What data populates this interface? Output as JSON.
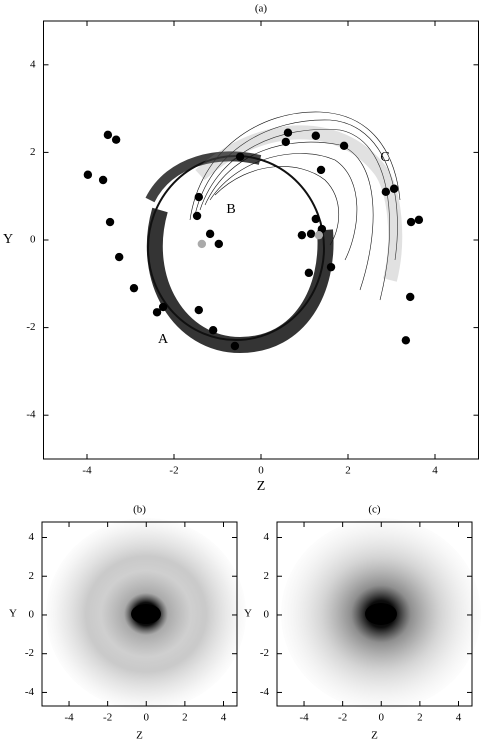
{
  "chart_data": [
    {
      "type": "scatter",
      "title": "(a)",
      "xlabel": "Z",
      "ylabel": "Y",
      "xlim": [
        -5,
        5
      ],
      "ylim": [
        -5,
        5
      ],
      "xticks": [
        -4,
        -2,
        0,
        2,
        4
      ],
      "yticks": [
        -4,
        -2,
        0,
        2,
        4
      ],
      "annotations": [
        "A",
        "B",
        "C"
      ],
      "series": [
        {
          "color": "#000000",
          "x": [
            -3.52,
            -3.33,
            -3.98,
            -3.63,
            -3.47,
            -3.26,
            -2.92,
            -2.39,
            -2.25,
            -1.43,
            -1.1,
            -0.6,
            -1.43,
            -1.47,
            -1.17,
            -0.97,
            -0.48,
            0.62,
            0.57,
            1.26,
            1.91,
            1.38,
            1.26,
            0.94,
            1.15,
            1.4,
            1.1,
            1.61,
            2.87,
            3.06,
            3.45,
            3.63,
            3.43,
            3.33
          ],
          "y": [
            2.4,
            2.29,
            1.49,
            1.37,
            0.41,
            -0.39,
            -1.1,
            -1.65,
            -1.53,
            -1.6,
            -2.06,
            -2.42,
            0.98,
            0.55,
            0.14,
            -0.09,
            1.9,
            2.45,
            2.24,
            2.38,
            2.15,
            1.6,
            0.48,
            0.11,
            0.14,
            0.25,
            -0.75,
            -0.62,
            1.1,
            1.17,
            0.41,
            0.46,
            -1.3,
            -2.29
          ]
        },
        {
          "color": "#aaaaaa",
          "x": [
            -1.36,
            1.33
          ],
          "y": [
            -0.09,
            0.11
          ]
        }
      ]
    },
    {
      "type": "density",
      "title": "(b)",
      "xlabel": "Z",
      "ylabel": "Y",
      "xlim": [
        -5.4,
        4.7
      ],
      "ylim": [
        -4.7,
        4.8
      ],
      "xticks": [
        -4,
        -2,
        0,
        2,
        4
      ],
      "yticks": [
        -4,
        -2,
        0,
        2,
        4
      ]
    },
    {
      "type": "density",
      "title": "(c)",
      "xlabel": "Z",
      "ylabel": "Y",
      "xlim": [
        -5.4,
        4.7
      ],
      "ylim": [
        -4.7,
        4.8
      ],
      "xticks": [
        -4,
        -2,
        0,
        2,
        4
      ],
      "yticks": [
        -4,
        -2,
        0,
        2,
        4
      ]
    }
  ]
}
